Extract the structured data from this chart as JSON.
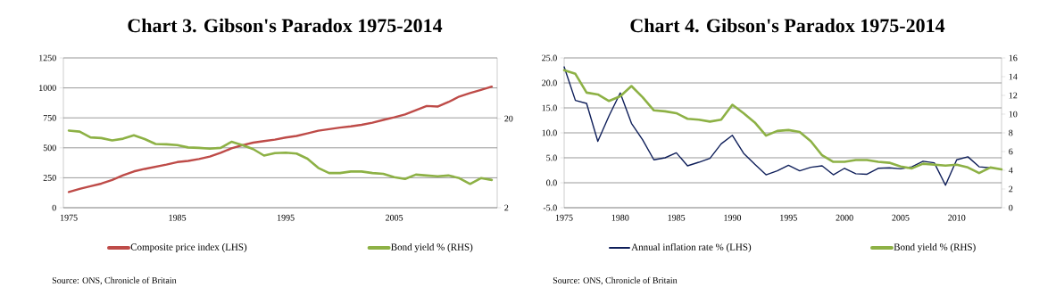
{
  "chart_data": [
    {
      "type": "line",
      "title": "Chart 3. Gibson's Paradox 1975-2014",
      "x": [
        1975,
        1976,
        1977,
        1978,
        1979,
        1980,
        1981,
        1982,
        1983,
        1984,
        1985,
        1986,
        1987,
        1988,
        1989,
        1990,
        1991,
        1992,
        1993,
        1994,
        1995,
        1996,
        1997,
        1998,
        1999,
        2000,
        2001,
        2002,
        2003,
        2004,
        2005,
        2006,
        2007,
        2008,
        2009,
        2010,
        2011,
        2012,
        2013,
        2014
      ],
      "series": [
        {
          "name": "Composite price index (LHS)",
          "color": "#be4b48",
          "values": [
            131,
            157,
            180,
            201,
            231,
            270,
            303,
            324,
            342,
            360,
            381,
            391,
            406,
            427,
            458,
            496,
            522,
            543,
            556,
            568,
            586,
            599,
            620,
            643,
            656,
            669,
            679,
            692,
            710,
            733,
            754,
            779,
            813,
            849,
            844,
            882,
            928,
            957,
            983,
            1011
          ]
        },
        {
          "name": "Bond yield % (RHS)",
          "color": "#8db145",
          "axis": "y2",
          "values": [
            14.7,
            14.3,
            12.3,
            12.1,
            11.4,
            11.9,
            13.0,
            11.8,
            10.4,
            10.3,
            10.1,
            9.5,
            9.4,
            9.2,
            9.4,
            11.0,
            10.1,
            9.1,
            7.7,
            8.2,
            8.3,
            8.1,
            7.1,
            5.6,
            4.9,
            4.9,
            5.1,
            5.1,
            4.9,
            4.8,
            4.4,
            4.2,
            4.7,
            4.6,
            4.5,
            4.6,
            4.3,
            3.7,
            4.3,
            4.1
          ]
        }
      ],
      "xlim": [
        1974.5,
        2014.5
      ],
      "xticks": [
        1975,
        1985,
        1995,
        2005
      ],
      "ylim": [
        0,
        1250
      ],
      "yticks": [
        0,
        250,
        500,
        750,
        1000,
        1250
      ],
      "y2lim": [
        2,
        96
      ],
      "y2ticks": [
        2,
        20
      ],
      "log": "y2",
      "grid": "y",
      "legend": "bottom",
      "annotations": [
        "Source: ONS, Chronicle of Britain"
      ]
    },
    {
      "type": "line",
      "title": "Chart 4. Gibson's Paradox 1975-2014",
      "x": [
        1975,
        1976,
        1977,
        1978,
        1979,
        1980,
        1981,
        1982,
        1983,
        1984,
        1985,
        1986,
        1987,
        1988,
        1989,
        1990,
        1991,
        1992,
        1993,
        1994,
        1995,
        1996,
        1997,
        1998,
        1999,
        2000,
        2001,
        2002,
        2003,
        2004,
        2005,
        2006,
        2007,
        2008,
        2009,
        2010,
        2011,
        2012,
        2013,
        2014
      ],
      "series": [
        {
          "name": "Annual inflation rate % (LHS)",
          "color": "#0f1f5a",
          "values": [
            23.2,
            16.5,
            15.9,
            8.3,
            13.4,
            18.0,
            11.9,
            8.6,
            4.6,
            5.0,
            6.0,
            3.4,
            4.1,
            4.9,
            7.8,
            9.5,
            5.9,
            3.7,
            1.6,
            2.4,
            3.5,
            2.4,
            3.1,
            3.4,
            1.6,
            2.9,
            1.8,
            1.7,
            2.9,
            3.0,
            2.8,
            3.2,
            4.3,
            4.0,
            -0.5,
            4.6,
            5.2,
            3.2,
            3.0,
            null
          ]
        },
        {
          "name": "Bond yield % (RHS)",
          "color": "#8db145",
          "axis": "y2",
          "values": [
            14.7,
            14.3,
            12.3,
            12.1,
            11.4,
            11.9,
            13.0,
            11.8,
            10.4,
            10.3,
            10.1,
            9.5,
            9.4,
            9.2,
            9.4,
            11.0,
            10.1,
            9.1,
            7.7,
            8.2,
            8.3,
            8.1,
            7.1,
            5.6,
            4.9,
            4.9,
            5.1,
            5.1,
            4.9,
            4.8,
            4.4,
            4.2,
            4.7,
            4.6,
            4.5,
            4.6,
            4.3,
            3.7,
            4.3,
            4.1
          ]
        }
      ],
      "xlim": [
        1975,
        2014
      ],
      "xticks": [
        1975,
        1980,
        1985,
        1990,
        1995,
        2000,
        2005,
        2010
      ],
      "ylim": [
        -5,
        25
      ],
      "yticks": [
        {
          "value": -5,
          "label": "-5.0"
        },
        {
          "value": 0,
          "label": "0.0"
        },
        {
          "value": 5,
          "label": "5.0"
        },
        {
          "value": 10,
          "label": "10.0"
        },
        {
          "value": 15,
          "label": "15.0"
        },
        {
          "value": 20,
          "label": "20.0"
        },
        {
          "value": 25,
          "label": "25.0"
        }
      ],
      "y2lim": [
        0,
        16
      ],
      "y2ticks": [
        0,
        2,
        4,
        6,
        8,
        10,
        12,
        14,
        16
      ],
      "grid": "y",
      "legend": "bottom",
      "annotations": [
        "Source: ONS, Chronicle of Britain"
      ]
    }
  ]
}
